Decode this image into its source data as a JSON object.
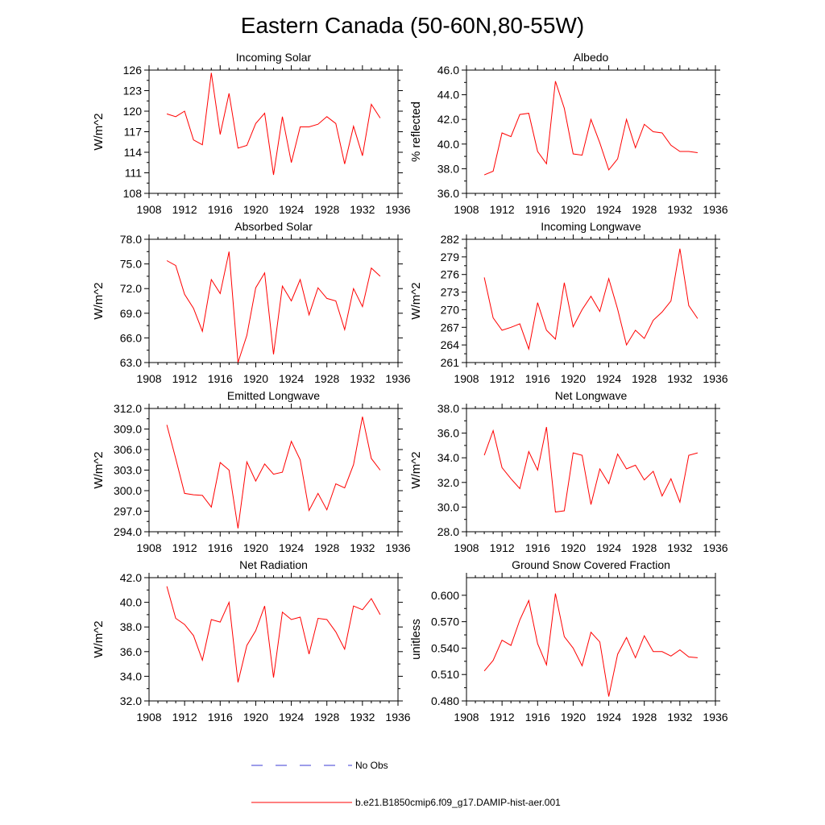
{
  "title": "Eastern Canada (50-60N,80-55W)",
  "legend": [
    {
      "label": "No Obs",
      "color": "#3b3bd6",
      "dash": true
    },
    {
      "label": "b.e21.B1850cmip6.f09_g17.DAMIP-hist-aer.001",
      "color": "#ff0000",
      "dash": false
    }
  ],
  "chart_data": [
    {
      "type": "line",
      "title": "Incoming Solar",
      "ylabel": "W/m^2",
      "xlim": [
        1908,
        1936
      ],
      "xticks": [
        1908,
        1912,
        1916,
        1920,
        1924,
        1928,
        1932,
        1936
      ],
      "xticklabels": [
        "1908",
        "1912",
        "1916",
        "1920",
        "1924",
        "1928",
        "1932",
        "1936"
      ],
      "ylim": [
        108,
        126
      ],
      "yticks": [
        108,
        111,
        114,
        117,
        120,
        123,
        126
      ],
      "yticklabels": [
        "108",
        "111",
        "114",
        "117",
        "120",
        "123",
        "126"
      ],
      "x": [
        1910,
        1911,
        1912,
        1913,
        1914,
        1915,
        1916,
        1917,
        1918,
        1919,
        1920,
        1921,
        1922,
        1923,
        1924,
        1925,
        1926,
        1927,
        1928,
        1929,
        1930,
        1931,
        1932,
        1933,
        1934
      ],
      "series": [
        {
          "color": "#ff0000",
          "values": [
            119.6,
            119.2,
            120.0,
            115.8,
            115.1,
            125.6,
            116.6,
            122.6,
            114.6,
            115.0,
            118.2,
            119.7,
            110.7,
            119.2,
            112.5,
            117.7,
            117.7,
            118.1,
            119.2,
            118.2,
            112.3,
            117.8,
            113.5,
            121.0,
            119.0
          ]
        }
      ]
    },
    {
      "type": "line",
      "title": "Albedo",
      "ylabel": "% reflected",
      "xlim": [
        1908,
        1936
      ],
      "xticks": [
        1908,
        1912,
        1916,
        1920,
        1924,
        1928,
        1932,
        1936
      ],
      "xticklabels": [
        "1908",
        "1912",
        "1916",
        "1920",
        "1924",
        "1928",
        "1932",
        "1936"
      ],
      "ylim": [
        36,
        46
      ],
      "yticks": [
        36,
        38,
        40,
        42,
        44,
        46
      ],
      "yticklabels": [
        "36.0",
        "38.0",
        "40.0",
        "42.0",
        "44.0",
        "46.0"
      ],
      "x": [
        1910,
        1911,
        1912,
        1913,
        1914,
        1915,
        1916,
        1917,
        1918,
        1919,
        1920,
        1921,
        1922,
        1923,
        1924,
        1925,
        1926,
        1927,
        1928,
        1929,
        1930,
        1931,
        1932,
        1933,
        1934
      ],
      "series": [
        {
          "color": "#ff0000",
          "values": [
            37.5,
            37.8,
            40.9,
            40.6,
            42.4,
            42.5,
            39.4,
            38.4,
            45.1,
            42.9,
            39.2,
            39.1,
            42.0,
            40.1,
            37.9,
            38.8,
            42.0,
            39.7,
            41.6,
            41.0,
            40.9,
            39.9,
            39.4,
            39.4,
            39.3
          ]
        }
      ]
    },
    {
      "type": "line",
      "title": "Absorbed Solar",
      "ylabel": "W/m^2",
      "xlim": [
        1908,
        1936
      ],
      "xticks": [
        1908,
        1912,
        1916,
        1920,
        1924,
        1928,
        1932,
        1936
      ],
      "xticklabels": [
        "1908",
        "1912",
        "1916",
        "1920",
        "1924",
        "1928",
        "1932",
        "1936"
      ],
      "ylim": [
        63,
        78
      ],
      "yticks": [
        63,
        66,
        69,
        72,
        75,
        78
      ],
      "yticklabels": [
        "63.0",
        "66.0",
        "69.0",
        "72.0",
        "75.0",
        "78.0"
      ],
      "x": [
        1910,
        1911,
        1912,
        1913,
        1914,
        1915,
        1916,
        1917,
        1918,
        1919,
        1920,
        1921,
        1922,
        1923,
        1924,
        1925,
        1926,
        1927,
        1928,
        1929,
        1930,
        1931,
        1932,
        1933,
        1934
      ],
      "series": [
        {
          "color": "#ff0000",
          "values": [
            75.4,
            74.8,
            71.3,
            69.6,
            66.8,
            73.1,
            71.4,
            76.5,
            63.0,
            66.3,
            72.1,
            73.9,
            64.0,
            72.3,
            70.5,
            73.1,
            68.8,
            72.1,
            70.8,
            70.5,
            67.0,
            72.0,
            69.8,
            74.5,
            73.5
          ]
        }
      ]
    },
    {
      "type": "line",
      "title": "Incoming Longwave",
      "ylabel": "W/m^2",
      "xlim": [
        1908,
        1936
      ],
      "xticks": [
        1908,
        1912,
        1916,
        1920,
        1924,
        1928,
        1932,
        1936
      ],
      "xticklabels": [
        "1908",
        "1912",
        "1916",
        "1920",
        "1924",
        "1928",
        "1932",
        "1936"
      ],
      "ylim": [
        261,
        282
      ],
      "yticks": [
        261,
        264,
        267,
        270,
        273,
        276,
        279,
        282
      ],
      "yticklabels": [
        "261",
        "264",
        "267",
        "270",
        "273",
        "276",
        "279",
        "282"
      ],
      "x": [
        1910,
        1911,
        1912,
        1913,
        1914,
        1915,
        1916,
        1917,
        1918,
        1919,
        1920,
        1921,
        1922,
        1923,
        1924,
        1925,
        1926,
        1927,
        1928,
        1929,
        1930,
        1931,
        1932,
        1933,
        1934
      ],
      "series": [
        {
          "color": "#ff0000",
          "values": [
            275.5,
            268.6,
            266.5,
            267.0,
            267.6,
            263.3,
            271.2,
            266.5,
            265.0,
            274.6,
            267.1,
            270.0,
            272.3,
            269.7,
            275.3,
            270.1,
            264.0,
            266.5,
            265.1,
            268.2,
            269.6,
            271.5,
            280.4,
            270.7,
            268.5
          ]
        }
      ]
    },
    {
      "type": "line",
      "title": "Emitted Longwave",
      "ylabel": "W/m^2",
      "xlim": [
        1908,
        1936
      ],
      "xticks": [
        1908,
        1912,
        1916,
        1920,
        1924,
        1928,
        1932,
        1936
      ],
      "xticklabels": [
        "1908",
        "1912",
        "1916",
        "1920",
        "1924",
        "1928",
        "1932",
        "1936"
      ],
      "ylim": [
        294,
        312
      ],
      "yticks": [
        294,
        297,
        300,
        303,
        306,
        309,
        312
      ],
      "yticklabels": [
        "294.0",
        "297.0",
        "300.0",
        "303.0",
        "306.0",
        "309.0",
        "312.0"
      ],
      "x": [
        1910,
        1911,
        1912,
        1913,
        1914,
        1915,
        1916,
        1917,
        1918,
        1919,
        1920,
        1921,
        1922,
        1923,
        1924,
        1925,
        1926,
        1927,
        1928,
        1929,
        1930,
        1931,
        1932,
        1933,
        1934
      ],
      "series": [
        {
          "color": "#ff0000",
          "values": [
            309.6,
            304.7,
            299.6,
            299.4,
            299.3,
            297.6,
            304.1,
            303.0,
            294.5,
            304.2,
            301.4,
            303.9,
            302.4,
            302.7,
            307.2,
            304.5,
            297.1,
            299.6,
            297.2,
            301.0,
            300.4,
            303.8,
            310.8,
            304.7,
            303.0
          ]
        }
      ]
    },
    {
      "type": "line",
      "title": "Net Longwave",
      "ylabel": "W/m^2",
      "xlim": [
        1908,
        1936
      ],
      "xticks": [
        1908,
        1912,
        1916,
        1920,
        1924,
        1928,
        1932,
        1936
      ],
      "xticklabels": [
        "1908",
        "1912",
        "1916",
        "1920",
        "1924",
        "1928",
        "1932",
        "1936"
      ],
      "ylim": [
        28,
        38
      ],
      "yticks": [
        28,
        30,
        32,
        34,
        36,
        38
      ],
      "yticklabels": [
        "28.0",
        "30.0",
        "32.0",
        "34.0",
        "36.0",
        "38.0"
      ],
      "x": [
        1910,
        1911,
        1912,
        1913,
        1914,
        1915,
        1916,
        1917,
        1918,
        1919,
        1920,
        1921,
        1922,
        1923,
        1924,
        1925,
        1926,
        1927,
        1928,
        1929,
        1930,
        1931,
        1932,
        1933,
        1934
      ],
      "series": [
        {
          "color": "#ff0000",
          "values": [
            34.2,
            36.2,
            33.2,
            32.3,
            31.5,
            34.5,
            33.0,
            36.5,
            29.6,
            29.7,
            34.4,
            34.2,
            30.2,
            33.1,
            31.9,
            34.3,
            33.1,
            33.4,
            32.2,
            32.9,
            30.9,
            32.3,
            30.4,
            34.2,
            34.4
          ]
        }
      ]
    },
    {
      "type": "line",
      "title": "Net Radiation",
      "ylabel": "W/m^2",
      "xlim": [
        1908,
        1936
      ],
      "xticks": [
        1908,
        1912,
        1916,
        1920,
        1924,
        1928,
        1932,
        1936
      ],
      "xticklabels": [
        "1908",
        "1912",
        "1916",
        "1920",
        "1924",
        "1928",
        "1932",
        "1936"
      ],
      "ylim": [
        32,
        42
      ],
      "yticks": [
        32,
        34,
        36,
        38,
        40,
        42
      ],
      "yticklabels": [
        "32.0",
        "34.0",
        "36.0",
        "38.0",
        "40.0",
        "42.0"
      ],
      "x": [
        1910,
        1911,
        1912,
        1913,
        1914,
        1915,
        1916,
        1917,
        1918,
        1919,
        1920,
        1921,
        1922,
        1923,
        1924,
        1925,
        1926,
        1927,
        1928,
        1929,
        1930,
        1931,
        1932,
        1933,
        1934
      ],
      "series": [
        {
          "color": "#ff0000",
          "values": [
            41.3,
            38.7,
            38.2,
            37.3,
            35.3,
            38.6,
            38.4,
            40.0,
            33.5,
            36.5,
            37.7,
            39.7,
            33.9,
            39.2,
            38.6,
            38.8,
            35.8,
            38.7,
            38.6,
            37.6,
            36.2,
            39.7,
            39.4,
            40.3,
            39.0
          ]
        }
      ]
    },
    {
      "type": "line",
      "title": "Ground Snow Covered Fraction",
      "ylabel": "unitless",
      "xlim": [
        1908,
        1936
      ],
      "xticks": [
        1908,
        1912,
        1916,
        1920,
        1924,
        1928,
        1932,
        1936
      ],
      "xticklabels": [
        "1908",
        "1912",
        "1916",
        "1920",
        "1924",
        "1928",
        "1932",
        "1936"
      ],
      "ylim": [
        0.48,
        0.62
      ],
      "yticks": [
        0.48,
        0.51,
        0.54,
        0.57,
        0.6
      ],
      "yticklabels": [
        "0.480",
        "0.510",
        "0.540",
        "0.570",
        "0.600"
      ],
      "x": [
        1910,
        1911,
        1912,
        1913,
        1914,
        1915,
        1916,
        1917,
        1918,
        1919,
        1920,
        1921,
        1922,
        1923,
        1924,
        1925,
        1926,
        1927,
        1928,
        1929,
        1930,
        1931,
        1932,
        1933,
        1934
      ],
      "series": [
        {
          "color": "#ff0000",
          "values": [
            0.514,
            0.526,
            0.549,
            0.543,
            0.572,
            0.594,
            0.545,
            0.521,
            0.602,
            0.553,
            0.54,
            0.52,
            0.558,
            0.547,
            0.485,
            0.533,
            0.552,
            0.529,
            0.554,
            0.536,
            0.536,
            0.531,
            0.538,
            0.53,
            0.529
          ]
        }
      ]
    }
  ]
}
